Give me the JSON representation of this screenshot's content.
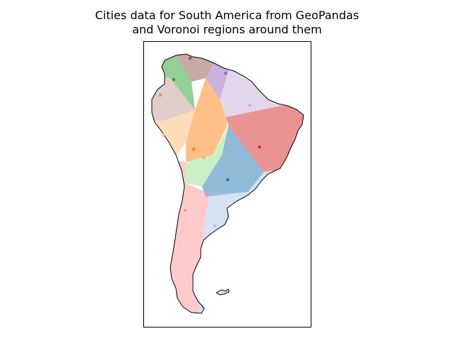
{
  "chart_data": {
    "type": "map",
    "title": "Cities data for South America from GeoPandas\nand Voronoi regions around them",
    "title_lines": [
      "Cities data for South America from GeoPandas",
      "and Voronoi regions around them"
    ],
    "axes_visible": false,
    "region_colors": [
      "#1f77b4",
      "#aec7e8",
      "#ff7f0e",
      "#ffbb78",
      "#2ca02c",
      "#98df8a",
      "#d62728",
      "#ff9896",
      "#9467bd",
      "#c5b0d5",
      "#8c564b",
      "#c49c94",
      "#e377c2",
      "#f7b6d2"
    ],
    "cities": [
      {
        "color": "#1f77b4"
      },
      {
        "color": "#aec7e8"
      },
      {
        "color": "#ff7f0e"
      },
      {
        "color": "#ffbb78"
      },
      {
        "color": "#2ca02c"
      },
      {
        "color": "#98df8a"
      },
      {
        "color": "#d62728"
      },
      {
        "color": "#ff9896"
      },
      {
        "color": "#9467bd"
      },
      {
        "color": "#c5b0d5"
      },
      {
        "color": "#8c564b"
      },
      {
        "color": "#c49c94"
      }
    ]
  }
}
